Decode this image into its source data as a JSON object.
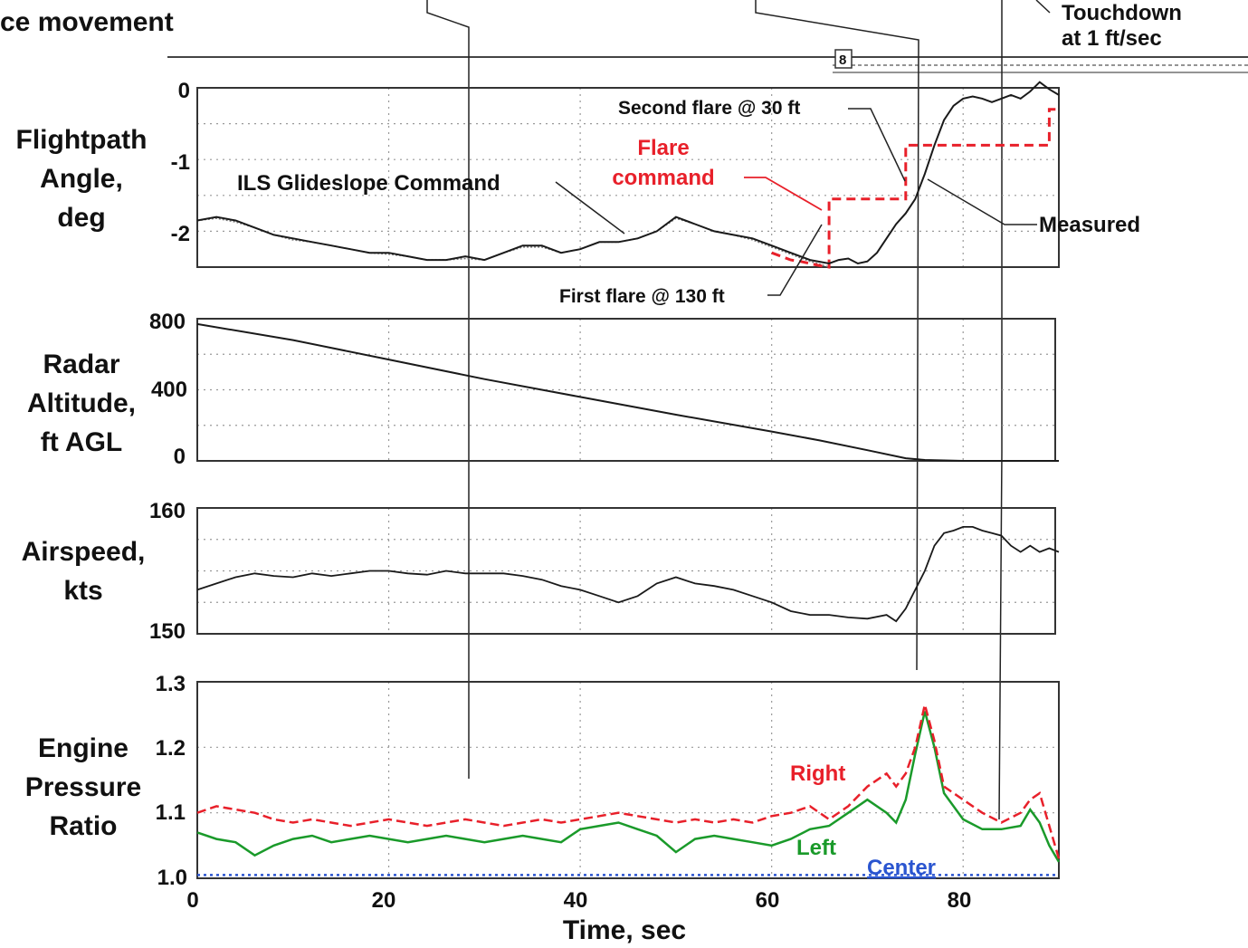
{
  "header": {
    "title": "ce movement",
    "touchdown_1": "Touchdown",
    "touchdown_2": "at 1 ft/sec",
    "mark": "8"
  },
  "x_axis": {
    "label": "Time, sec",
    "ticks": [
      "0",
      "20",
      "40",
      "60",
      "80"
    ],
    "range": [
      0,
      90
    ]
  },
  "panels": {
    "fpa": {
      "ylabel": [
        "Flightpath",
        "Angle,",
        "deg"
      ],
      "ticks": [
        "0",
        "-1",
        "-2"
      ],
      "annotations": {
        "ils": "ILS Glideslope Command",
        "flare_1": "Flare",
        "flare_2": "command",
        "second_flare": "Second flare @ 30 ft",
        "first_flare": "First flare @ 130 ft",
        "measured": "Measured"
      }
    },
    "alt": {
      "ylabel": [
        "Radar",
        "Altitude,",
        "ft AGL"
      ],
      "ticks": [
        "800",
        "400",
        "0"
      ]
    },
    "spd": {
      "ylabel": [
        "Airspeed,",
        "kts"
      ],
      "ticks": [
        "160",
        "150"
      ]
    },
    "epr": {
      "ylabel": [
        "Engine",
        "Pressure",
        "Ratio"
      ],
      "ticks": [
        "1.3",
        "1.2",
        "1.1",
        "1.0"
      ],
      "series_labels": {
        "right": "Right",
        "left": "Left",
        "center": "Center"
      }
    }
  },
  "colors": {
    "measured": "#1a1a1a",
    "command": "#e8202a",
    "right": "#e8202a",
    "left": "#1a9a2a",
    "center": "#2a55d0"
  },
  "chart_data": [
    {
      "type": "line",
      "ylabel": "Flightpath Angle, deg",
      "xlabel": "Time, sec",
      "xlim": [
        0,
        90
      ],
      "ylim": [
        -2.5,
        0
      ],
      "grid": true,
      "series": [
        {
          "name": "Measured",
          "x": [
            0,
            2,
            4,
            6,
            8,
            10,
            12,
            14,
            16,
            18,
            20,
            22,
            24,
            26,
            28,
            30,
            32,
            34,
            36,
            38,
            40,
            42,
            44,
            46,
            48,
            50,
            52,
            54,
            56,
            58,
            60,
            62,
            64,
            66,
            67,
            68,
            69,
            70,
            71,
            72,
            73,
            74,
            75,
            76,
            77,
            78,
            79,
            80,
            81,
            82,
            83,
            84,
            85,
            86,
            87,
            88,
            89,
            90
          ],
          "y": [
            -1.85,
            -1.8,
            -1.85,
            -1.95,
            -2.05,
            -2.1,
            -2.15,
            -2.2,
            -2.25,
            -2.3,
            -2.3,
            -2.35,
            -2.4,
            -2.4,
            -2.35,
            -2.4,
            -2.3,
            -2.2,
            -2.2,
            -2.3,
            -2.25,
            -2.15,
            -2.15,
            -2.1,
            -2.0,
            -1.8,
            -1.9,
            -2.0,
            -2.05,
            -2.1,
            -2.2,
            -2.3,
            -2.4,
            -2.45,
            -2.4,
            -2.38,
            -2.45,
            -2.42,
            -2.3,
            -2.1,
            -1.9,
            -1.75,
            -1.55,
            -1.2,
            -0.8,
            -0.45,
            -0.25,
            -0.15,
            -0.12,
            -0.15,
            -0.2,
            -0.15,
            -0.1,
            -0.15,
            -0.05,
            0.08,
            -0.02,
            -0.1
          ]
        },
        {
          "name": "ILS Glideslope Command",
          "x": [
            0,
            2,
            4,
            6,
            8,
            10,
            12,
            14,
            16,
            18,
            20,
            22,
            24,
            26,
            28,
            30,
            32,
            34,
            36,
            38,
            40,
            42,
            44,
            46,
            48,
            50,
            52,
            54,
            56,
            58,
            60,
            62,
            64,
            66
          ],
          "y": [
            -1.85,
            -1.82,
            -1.87,
            -1.95,
            -2.05,
            -2.12,
            -2.15,
            -2.2,
            -2.25,
            -2.3,
            -2.32,
            -2.35,
            -2.4,
            -2.4,
            -2.38,
            -2.4,
            -2.3,
            -2.22,
            -2.22,
            -2.3,
            -2.25,
            -2.15,
            -2.15,
            -2.1,
            -2.0,
            -1.82,
            -1.9,
            -2.0,
            -2.05,
            -2.12,
            -2.22,
            -2.32,
            -2.42,
            -2.5
          ]
        },
        {
          "name": "Flare command",
          "x": [
            60,
            61,
            62,
            63,
            64,
            65,
            66,
            66,
            70,
            74,
            74,
            80,
            86,
            89,
            89,
            90
          ],
          "y": [
            -2.3,
            -2.35,
            -2.4,
            -2.42,
            -2.45,
            -2.48,
            -2.5,
            -1.55,
            -1.55,
            -1.55,
            -0.8,
            -0.8,
            -0.8,
            -0.8,
            -0.3,
            -0.3
          ]
        }
      ]
    },
    {
      "type": "line",
      "ylabel": "Radar Altitude, ft AGL",
      "xlabel": "Time, sec",
      "xlim": [
        0,
        90
      ],
      "ylim": [
        0,
        800
      ],
      "grid": true,
      "series": [
        {
          "name": "Radar Altitude",
          "x": [
            0,
            10,
            20,
            30,
            40,
            50,
            60,
            65,
            70,
            74,
            76,
            80,
            85,
            90
          ],
          "y": [
            770,
            680,
            570,
            460,
            360,
            260,
            165,
            115,
            60,
            15,
            5,
            0,
            0,
            0
          ]
        }
      ]
    },
    {
      "type": "line",
      "ylabel": "Airspeed, kts",
      "xlabel": "Time, sec",
      "xlim": [
        0,
        90
      ],
      "ylim": [
        150,
        160
      ],
      "grid": true,
      "series": [
        {
          "name": "Airspeed",
          "x": [
            0,
            2,
            4,
            6,
            8,
            10,
            12,
            14,
            16,
            18,
            20,
            22,
            24,
            26,
            28,
            30,
            32,
            34,
            36,
            38,
            40,
            42,
            44,
            46,
            48,
            50,
            52,
            54,
            56,
            58,
            60,
            62,
            64,
            66,
            68,
            70,
            72,
            73,
            74,
            75,
            76,
            77,
            78,
            79,
            80,
            81,
            82,
            83,
            84,
            85,
            86,
            87,
            88,
            89,
            90
          ],
          "y": [
            153.5,
            154.0,
            154.5,
            154.8,
            154.6,
            154.5,
            154.8,
            154.6,
            154.8,
            155.0,
            155.0,
            154.8,
            154.7,
            155.0,
            154.8,
            154.8,
            154.8,
            154.6,
            154.3,
            153.8,
            153.5,
            153.0,
            152.5,
            153.0,
            154.0,
            154.5,
            154.0,
            153.8,
            153.5,
            153.0,
            152.5,
            151.8,
            151.5,
            151.5,
            151.3,
            151.2,
            151.5,
            151.0,
            152.0,
            153.5,
            155.0,
            157.0,
            158.0,
            158.2,
            158.5,
            158.5,
            158.2,
            158.0,
            157.8,
            157.0,
            156.5,
            157.0,
            156.5,
            156.8,
            156.5
          ]
        }
      ]
    },
    {
      "type": "line",
      "ylabel": "Engine Pressure Ratio",
      "xlabel": "Time, sec",
      "xlim": [
        0,
        90
      ],
      "ylim": [
        1.0,
        1.3
      ],
      "grid": true,
      "series": [
        {
          "name": "Right",
          "x": [
            0,
            2,
            4,
            6,
            8,
            10,
            12,
            14,
            16,
            18,
            20,
            22,
            24,
            26,
            28,
            30,
            32,
            34,
            36,
            38,
            40,
            42,
            44,
            46,
            48,
            50,
            52,
            54,
            56,
            58,
            60,
            62,
            64,
            66,
            68,
            70,
            72,
            73,
            74,
            75,
            76,
            77,
            78,
            80,
            82,
            84,
            86,
            87,
            88,
            89,
            90
          ],
          "y": [
            1.1,
            1.11,
            1.105,
            1.1,
            1.09,
            1.085,
            1.09,
            1.085,
            1.08,
            1.085,
            1.09,
            1.085,
            1.08,
            1.085,
            1.09,
            1.085,
            1.08,
            1.085,
            1.09,
            1.085,
            1.09,
            1.095,
            1.1,
            1.095,
            1.09,
            1.085,
            1.09,
            1.085,
            1.09,
            1.085,
            1.095,
            1.1,
            1.11,
            1.09,
            1.11,
            1.14,
            1.16,
            1.14,
            1.16,
            1.2,
            1.265,
            1.21,
            1.14,
            1.12,
            1.1,
            1.085,
            1.1,
            1.12,
            1.13,
            1.08,
            1.03
          ]
        },
        {
          "name": "Left",
          "x": [
            0,
            2,
            4,
            6,
            8,
            10,
            12,
            14,
            16,
            18,
            20,
            22,
            24,
            26,
            28,
            30,
            32,
            34,
            36,
            38,
            40,
            42,
            44,
            46,
            48,
            50,
            52,
            54,
            56,
            58,
            60,
            62,
            64,
            66,
            68,
            70,
            72,
            73,
            74,
            75,
            76,
            77,
            78,
            80,
            82,
            84,
            86,
            87,
            88,
            89,
            90
          ],
          "y": [
            1.07,
            1.06,
            1.055,
            1.035,
            1.05,
            1.06,
            1.065,
            1.055,
            1.06,
            1.065,
            1.06,
            1.055,
            1.06,
            1.065,
            1.06,
            1.055,
            1.06,
            1.065,
            1.06,
            1.055,
            1.075,
            1.08,
            1.085,
            1.075,
            1.065,
            1.04,
            1.06,
            1.065,
            1.06,
            1.055,
            1.05,
            1.06,
            1.075,
            1.08,
            1.1,
            1.12,
            1.1,
            1.085,
            1.12,
            1.19,
            1.255,
            1.2,
            1.13,
            1.09,
            1.075,
            1.075,
            1.08,
            1.105,
            1.085,
            1.05,
            1.025
          ]
        },
        {
          "name": "Center",
          "x": [
            0,
            90
          ],
          "y": [
            1.005,
            1.005
          ]
        }
      ]
    }
  ]
}
